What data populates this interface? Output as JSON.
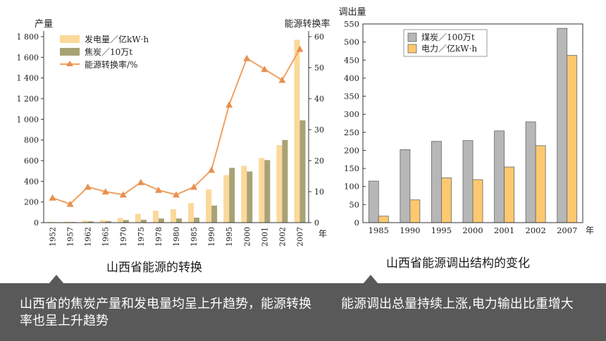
{
  "chart_data": [
    {
      "type": "bar+line",
      "ylabel_left": "产量",
      "ylabel_right": "能源转换率",
      "xlabel_suffix": "年",
      "ylim_left": [
        0,
        1800
      ],
      "ylim_right": [
        0,
        60
      ],
      "yticks_left": [
        "0",
        "200",
        "400",
        "600",
        "800",
        "1 000",
        "1 200",
        "1 400",
        "1 600",
        "1 800"
      ],
      "yticks_right": [
        "0",
        "10",
        "20",
        "30",
        "40",
        "50",
        "60"
      ],
      "categories": [
        "1952",
        "1957",
        "1962",
        "1965",
        "1970",
        "1975",
        "1978",
        "1980",
        "1985",
        "1990",
        "1995",
        "2000",
        "2001",
        "2002",
        "2007"
      ],
      "series": [
        {
          "name": "发电量／亿kW·h",
          "kind": "bar",
          "color": "#fbd99a",
          "values": [
            8,
            10,
            20,
            25,
            45,
            85,
            115,
            130,
            190,
            320,
            460,
            550,
            625,
            750,
            1770
          ]
        },
        {
          "name": "焦炭／10万t",
          "kind": "bar",
          "color": "#a8a275",
          "values": [
            4,
            6,
            12,
            15,
            25,
            28,
            40,
            40,
            48,
            165,
            530,
            495,
            605,
            800,
            990
          ]
        },
        {
          "name": "能源转换率/%",
          "kind": "line",
          "axis": "right",
          "color": "#f0a060",
          "values": [
            8,
            6,
            11.5,
            10,
            9,
            13,
            10.5,
            9,
            11.5,
            17,
            38,
            53,
            49.5,
            46,
            56
          ]
        }
      ]
    },
    {
      "type": "bar",
      "ylabel": "调出量",
      "xlabel_suffix": "年",
      "ylim": [
        0,
        550
      ],
      "yticks": [
        "0",
        "50",
        "100",
        "150",
        "200",
        "250",
        "300",
        "350",
        "400",
        "450",
        "500",
        "550"
      ],
      "categories": [
        "1985",
        "1990",
        "1995",
        "2000",
        "2001",
        "2002",
        "2007"
      ],
      "series": [
        {
          "name": "煤炭／100万t",
          "color": "#b7b7b7",
          "values": [
            115,
            202,
            225,
            227,
            254,
            279,
            538
          ]
        },
        {
          "name": "电力／亿kW·h",
          "color": "#fcc870",
          "values": [
            18,
            63,
            124,
            119,
            154,
            213,
            463
          ]
        }
      ]
    }
  ],
  "captions": {
    "left": "山西省能源的转换",
    "right": "山西省能源调出结构的变化"
  },
  "bottom_bar": {
    "left_text": "山西省的焦炭产量和发电量均呈上升趋势，能源转换率也呈上升趋势",
    "right_text": "能源调出总量持续上涨,电力输出比重增大"
  }
}
